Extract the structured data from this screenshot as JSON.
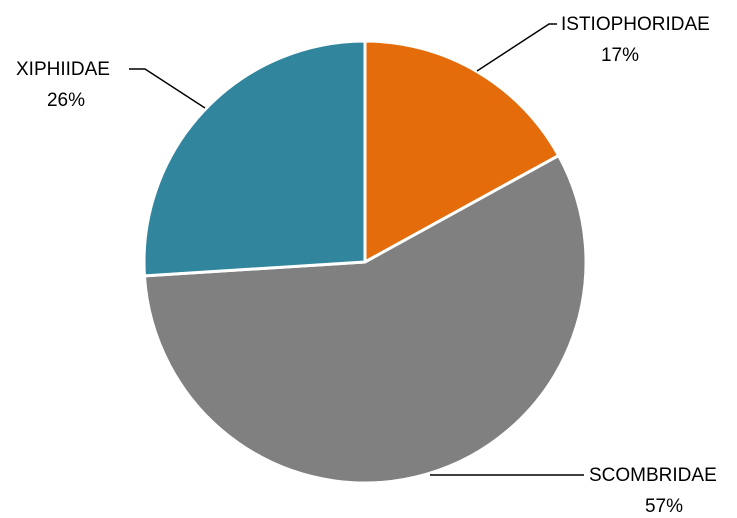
{
  "chart_data": {
    "type": "pie",
    "categories": [
      "ISTIOPHORIDAE",
      "SCOMBRIDAE",
      "XIPHIIDAE"
    ],
    "values": [
      17,
      57,
      26
    ],
    "percent_labels": [
      "17%",
      "57%",
      "26%"
    ],
    "colors": [
      "#E46C0A",
      "#808080",
      "#31859C"
    ],
    "start_angle_deg": 0,
    "direction": "clockwise",
    "title": "",
    "legend": false
  }
}
